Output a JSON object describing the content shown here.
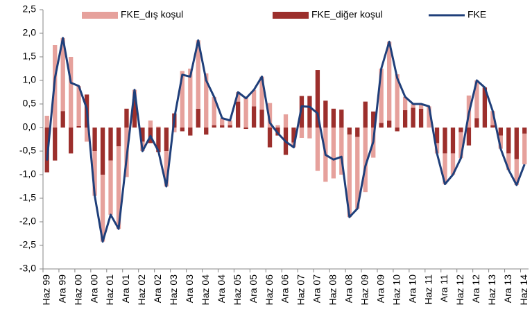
{
  "chart_data": {
    "type": "bar",
    "categories": [
      "Haz 99",
      null,
      "Ara 99",
      null,
      "Haz 00",
      null,
      "Ara 00",
      null,
      "Haz 01",
      null,
      "Ara 01",
      null,
      "Haz 02",
      null,
      "Ara 02",
      null,
      "Haz 03",
      null,
      "Ara 03",
      null,
      "Haz 04",
      null,
      "Ara 04",
      null,
      "Haz 05",
      null,
      "Ara 05",
      null,
      "Haz 06",
      null,
      "Ara 06",
      null,
      "Haz 07",
      null,
      "Ara 07",
      null,
      "Haz 08",
      null,
      "Ara 08",
      null,
      "Haz 09",
      null,
      "Ara 09",
      null,
      "Haz 10",
      null,
      "Ara 10",
      null,
      "Haz 11",
      null,
      "Ara 11",
      null,
      "Haz 12",
      null,
      "Ara 12",
      null,
      "Haz 13",
      null,
      "Ara 13",
      null,
      "Haz 14"
    ],
    "series": [
      {
        "name": "FKE_dış koşul",
        "type": "bar",
        "color": "#e6a19c",
        "values": [
          0.25,
          1.75,
          1.55,
          1.5,
          0.85,
          -0.3,
          -0.95,
          -1.42,
          -1.15,
          -1.75,
          -1.05,
          0.2,
          -0.2,
          0.15,
          0.02,
          -0.75,
          -0.1,
          1.2,
          1.25,
          1.45,
          1.15,
          0.6,
          0.15,
          0.1,
          0.2,
          0.65,
          0.35,
          0.7,
          0.52,
          0.05,
          0.28,
          -0.1,
          -0.22,
          -0.23,
          -0.92,
          -1.15,
          -1.08,
          -1.0,
          -1.75,
          -1.52,
          -1.37,
          -0.64,
          1.15,
          1.67,
          1.13,
          0.28,
          0.08,
          0.1,
          0.45,
          -0.22,
          -0.65,
          -0.45,
          -0.55,
          0.68,
          0.8,
          0.0,
          0.3,
          -0.28,
          -0.35,
          -0.55,
          -0.65
        ]
      },
      {
        "name": "FKE_diğer koşul",
        "type": "bar",
        "color": "#9c2f2c",
        "values": [
          -0.95,
          -0.7,
          0.35,
          -0.55,
          0.03,
          0.7,
          -0.5,
          -1.0,
          -0.7,
          -0.4,
          0.4,
          0.6,
          -0.3,
          -0.33,
          -0.52,
          -0.5,
          0.3,
          -0.08,
          -0.17,
          0.4,
          -0.15,
          0.05,
          0.05,
          0.05,
          0.55,
          -0.03,
          0.45,
          0.38,
          -0.42,
          -0.17,
          -0.58,
          -0.32,
          0.67,
          0.67,
          1.22,
          0.57,
          0.4,
          0.38,
          -0.15,
          -0.2,
          0.55,
          0.34,
          0.1,
          0.15,
          -0.08,
          0.37,
          0.42,
          0.4,
          0.0,
          -0.33,
          -0.55,
          -0.55,
          -0.1,
          -0.38,
          0.2,
          0.85,
          0.05,
          -0.17,
          -0.55,
          -0.67,
          -0.13
        ]
      },
      {
        "name": "FKE",
        "type": "line",
        "color": "#1f3f7a",
        "values": [
          -0.7,
          1.05,
          1.9,
          0.95,
          0.88,
          0.4,
          -1.45,
          -2.42,
          -1.85,
          -2.15,
          -0.65,
          0.8,
          -0.5,
          -0.18,
          -0.5,
          -1.25,
          0.2,
          1.12,
          1.08,
          1.85,
          1.0,
          0.65,
          0.2,
          0.15,
          0.75,
          0.62,
          0.8,
          1.08,
          0.1,
          -0.12,
          -0.3,
          -0.42,
          0.45,
          0.44,
          0.3,
          -0.58,
          -0.68,
          -0.62,
          -1.9,
          -1.72,
          -0.82,
          -0.3,
          1.25,
          1.82,
          1.05,
          0.65,
          0.5,
          0.5,
          0.45,
          -0.55,
          -1.2,
          -1.0,
          -0.65,
          0.3,
          1.0,
          0.85,
          0.35,
          -0.45,
          -0.9,
          -1.22,
          -0.78
        ]
      }
    ],
    "ylim": [
      -3.0,
      2.5
    ],
    "yticks": [
      {
        "value": -3.0,
        "label": "-3,0"
      },
      {
        "value": -2.5,
        "label": "-2,5"
      },
      {
        "value": -2.0,
        "label": "-2,0"
      },
      {
        "value": -1.5,
        "label": "-1,5"
      },
      {
        "value": -1.0,
        "label": "-1,0"
      },
      {
        "value": -0.5,
        "label": "-0,5"
      },
      {
        "value": 0.0,
        "label": "0,0"
      },
      {
        "value": 0.5,
        "label": "0,5"
      },
      {
        "value": 1.0,
        "label": "1,0"
      },
      {
        "value": 1.5,
        "label": "1,5"
      },
      {
        "value": 2.0,
        "label": "2,0"
      },
      {
        "value": 2.5,
        "label": "2,5"
      }
    ],
    "grid": false,
    "legend": "top"
  }
}
